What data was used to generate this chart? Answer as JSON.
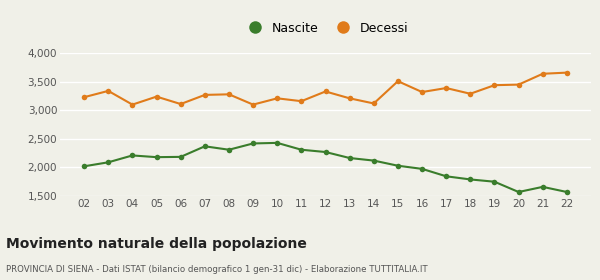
{
  "years": [
    2,
    3,
    4,
    5,
    6,
    7,
    8,
    9,
    10,
    11,
    12,
    13,
    14,
    15,
    16,
    17,
    18,
    19,
    20,
    21,
    22
  ],
  "nascite": [
    2020,
    2090,
    2210,
    2180,
    2185,
    2370,
    2310,
    2420,
    2430,
    2310,
    2270,
    2165,
    2120,
    2030,
    1975,
    1845,
    1790,
    1750,
    1570,
    1660,
    1570
  ],
  "decessi": [
    3230,
    3340,
    3100,
    3240,
    3110,
    3270,
    3280,
    3100,
    3210,
    3160,
    3330,
    3210,
    3120,
    3510,
    3320,
    3390,
    3290,
    3440,
    3450,
    3640,
    3660
  ],
  "nascite_color": "#3a7d2c",
  "decessi_color": "#e07b1a",
  "background_color": "#f0f0e8",
  "grid_color": "#ffffff",
  "ylim": [
    1500,
    4000
  ],
  "yticks": [
    1500,
    2000,
    2500,
    3000,
    3500,
    4000
  ],
  "ytick_labels": [
    "1,500",
    "2,000",
    "2,500",
    "3,000",
    "3,500",
    "4,000"
  ],
  "title": "Movimento naturale della popolazione",
  "subtitle": "PROVINCIA DI SIENA - Dati ISTAT (bilancio demografico 1 gen-31 dic) - Elaborazione TUTTITALIA.IT",
  "legend_nascite": "Nascite",
  "legend_decessi": "Decessi",
  "marker_size": 4,
  "line_width": 1.5
}
